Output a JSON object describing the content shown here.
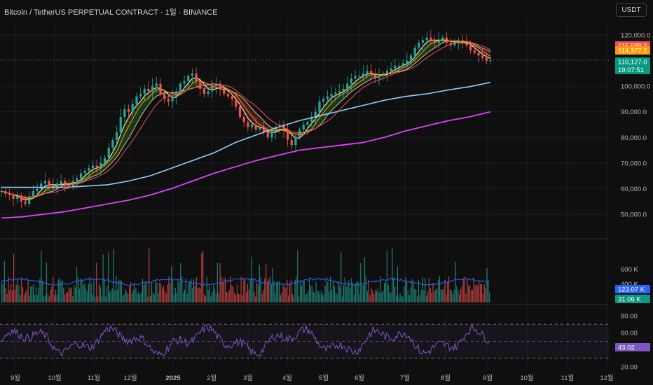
{
  "header": {
    "title": "Bitcoin / TetherUS PERPETUAL CONTRACT · 1일 · BINANCE",
    "currency_button": "USDT"
  },
  "colors": {
    "background": "#0f0f0f",
    "up_candle": "#26a69a",
    "down_candle": "#ef5350",
    "ma_long": "#e040fb",
    "ma_mid": "#90caf9",
    "ma_fast_orange": "#ff9800",
    "ma_fast_red": "#ef5350",
    "cloud_bull": "#1b3d1e",
    "cloud_bear": "#4a1f1f",
    "cloud_edge": "#f5e6c8",
    "rsi_line": "#7e57c2",
    "volume_ma": "#2962ff"
  },
  "chart_data": {
    "type": "line",
    "price_axis": {
      "ticks": [
        "120,000.0",
        "100,000.0",
        "90,000.0",
        "80,000.0",
        "70,000.0",
        "60,000.0",
        "50,000.0"
      ],
      "tick_values": [
        120000,
        100000,
        90000,
        80000,
        70000,
        60000,
        50000
      ],
      "ylim": [
        45000,
        125000
      ]
    },
    "time_axis": {
      "ticks": [
        "9월",
        "10월",
        "11월",
        "12월",
        "2025",
        "2월",
        "3월",
        "4월",
        "5월",
        "6월",
        "7월",
        "8월",
        "9월",
        "10월",
        "11월",
        "12월"
      ]
    },
    "price_tags": [
      {
        "label": "115,689.2",
        "value": 115689.2,
        "color": "#ef5350"
      },
      {
        "label": "114,377.2",
        "value": 114377.2,
        "color": "#ff9800"
      },
      {
        "label": "110,127.0",
        "sub": "19:07:51",
        "value": 110127.0,
        "color": "#089981"
      }
    ],
    "candles_close": [
      59000,
      58000,
      57500,
      56000,
      57000,
      55000,
      54000,
      57000,
      59000,
      60000,
      62000,
      63000,
      61000,
      60000,
      62000,
      63000,
      62000,
      61000,
      63000,
      64000,
      66000,
      67000,
      68000,
      69000,
      68000,
      70000,
      72000,
      76000,
      79000,
      82000,
      88000,
      91000,
      90000,
      93000,
      96000,
      97000,
      99000,
      98000,
      100000,
      101000,
      97000,
      95000,
      94000,
      96000,
      98000,
      101000,
      102000,
      104000,
      105000,
      102000,
      99000,
      97000,
      98000,
      100000,
      101000,
      99000,
      97000,
      96000,
      95000,
      92000,
      88000,
      86000,
      84000,
      85000,
      83000,
      84000,
      82000,
      80000,
      82000,
      84000,
      85000,
      83000,
      79000,
      77000,
      80000,
      83000,
      85000,
      86000,
      88000,
      90000,
      94000,
      95000,
      96000,
      97000,
      97500,
      98000,
      99000,
      101000,
      103000,
      104000,
      104000,
      105000,
      106000,
      105000,
      103000,
      104000,
      105000,
      106000,
      107000,
      108000,
      108000,
      109000,
      110000,
      112000,
      115000,
      117000,
      118000,
      119000,
      118000,
      117000,
      118000,
      119000,
      117000,
      116000,
      117000,
      118000,
      117000,
      116000,
      114000,
      113000,
      112000,
      111000,
      110000,
      110127
    ],
    "moving_averages": [
      {
        "name": "MA long",
        "values": [
          48500,
          49000,
          50000,
          51000,
          52500,
          54000,
          55500,
          57500,
          60000,
          63000,
          66000,
          68500,
          71000,
          73000,
          75000,
          76000,
          77000,
          78000,
          80000,
          82500,
          84500,
          86500,
          88000,
          90000
        ]
      },
      {
        "name": "MA mid",
        "values": [
          60500,
          60500,
          60500,
          60500,
          61000,
          61500,
          63000,
          65000,
          68000,
          71000,
          74000,
          78000,
          81000,
          84000,
          86500,
          88500,
          90500,
          92500,
          94500,
          96000,
          97000,
          98500,
          99800,
          101500
        ]
      }
    ],
    "volume": {
      "axis_ticks": [
        "600 K",
        "400 K"
      ],
      "tags": [
        {
          "label": "123.07 K",
          "color": "#2962ff"
        },
        {
          "label": "31.06 K",
          "color": "#089981"
        }
      ]
    },
    "rsi": {
      "axis_ticks": [
        "80.00",
        "60.00",
        "20.00"
      ],
      "tick_values": [
        80,
        60,
        20
      ],
      "tag": {
        "label": "43.02",
        "color": "#7e57c2"
      },
      "bands": [
        70,
        50,
        30
      ]
    }
  }
}
